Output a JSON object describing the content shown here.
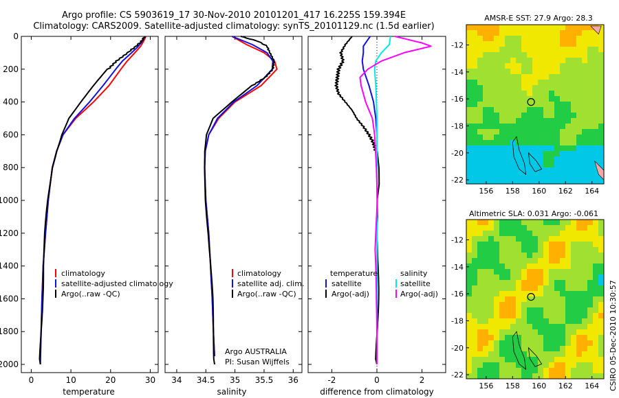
{
  "header": {
    "line1": "Argo profile: CS 5903619_17 30-Nov-2010 20101201_417 16.225S 159.394E",
    "line2": "Climatology: CARS2009. Satellite-adjusted climatology: synTS_20101129.nc (1.5d earlier)"
  },
  "credit": "CSIRO 05-Dec-2010 10:30:57",
  "colors": {
    "red": "#ff0000",
    "blue": "#1010e0",
    "black": "#000000",
    "cyan": "#00e8e8",
    "magenta": "#ff00ff"
  },
  "chart_data": [
    {
      "type": "line",
      "id": "temperature",
      "xlabel": "temperature",
      "ylabel": "",
      "xlim": [
        -2.5,
        32
      ],
      "ylim": [
        2050,
        0
      ],
      "xticks": [
        0,
        10,
        20,
        30
      ],
      "yticks": [
        0,
        200,
        400,
        600,
        800,
        1000,
        1200,
        1400,
        1600,
        1800,
        2000
      ],
      "legend": [
        "climatology",
        "satellite-adjusted climatology",
        "Argo(..raw -QC)"
      ],
      "series": [
        {
          "name": "climatology",
          "color": "red",
          "depth": [
            0,
            30,
            60,
            100,
            150,
            200,
            300,
            400,
            500,
            600,
            700,
            800,
            1000,
            1200,
            1400,
            1600,
            1800,
            1860
          ],
          "values": [
            28.9,
            28.3,
            27.6,
            26.1,
            24.2,
            22.6,
            19.6,
            15.7,
            11.2,
            8.0,
            6.4,
            5.3,
            4.3,
            3.6,
            3.0,
            2.7,
            2.5,
            2.4
          ]
        },
        {
          "name": "satellite-adjusted climatology",
          "color": "blue",
          "depth": [
            0,
            30,
            60,
            100,
            150,
            200,
            300,
            400,
            500,
            600,
            700,
            800,
            1000,
            1200,
            1400,
            1600,
            1800,
            2000
          ],
          "values": [
            28.6,
            28.0,
            27.0,
            25.3,
            23.0,
            21.3,
            18.1,
            14.7,
            10.9,
            8.0,
            6.4,
            5.3,
            4.3,
            3.6,
            3.0,
            2.7,
            2.5,
            2.3
          ]
        },
        {
          "name": "Argo(..raw -QC)",
          "color": "black",
          "depth": [
            0,
            30,
            60,
            100,
            150,
            200,
            300,
            400,
            500,
            600,
            700,
            800,
            1000,
            1200,
            1400,
            1600,
            1800,
            2000
          ],
          "values": [
            28.6,
            27.8,
            26.4,
            24.3,
            21.5,
            19.4,
            15.9,
            12.6,
            9.4,
            7.5,
            6.2,
            5.2,
            4.3,
            3.6,
            3.0,
            2.7,
            2.5,
            2.3
          ]
        }
      ]
    },
    {
      "type": "line",
      "id": "salinity",
      "xlabel": "salinity",
      "ylabel": "",
      "xlim": [
        33.8,
        36.15
      ],
      "ylim": [
        2050,
        0
      ],
      "xticks": [
        34,
        34.5,
        35,
        35.5,
        36
      ],
      "legend": [
        "climatology",
        "satellite adj. clim.",
        "Argo(..raw -QC)"
      ],
      "annotation": [
        "Argo AUSTRALIA",
        "PI: Susan Wijffels"
      ],
      "series": [
        {
          "name": "climatology",
          "color": "red",
          "depth": [
            0,
            50,
            100,
            150,
            200,
            300,
            400,
            500,
            600,
            700,
            800,
            1000,
            1200,
            1400,
            1600,
            1800,
            1950
          ],
          "values": [
            34.95,
            35.2,
            35.5,
            35.68,
            35.72,
            35.45,
            35.0,
            34.72,
            34.55,
            34.49,
            34.48,
            34.5,
            34.55,
            34.58,
            34.61,
            34.63,
            34.65
          ]
        },
        {
          "name": "satellite adj. clim.",
          "color": "blue",
          "depth": [
            0,
            50,
            100,
            150,
            200,
            300,
            400,
            500,
            600,
            700,
            800,
            1000,
            1200,
            1400,
            1600,
            1800,
            1950
          ],
          "values": [
            34.95,
            35.3,
            35.55,
            35.65,
            35.64,
            35.38,
            34.98,
            34.7,
            34.55,
            34.49,
            34.48,
            34.5,
            34.55,
            34.58,
            34.61,
            34.63,
            34.65
          ]
        },
        {
          "name": "Argo(..raw -QC)",
          "color": "black",
          "depth": [
            0,
            30,
            60,
            100,
            150,
            200,
            250,
            300,
            400,
            500,
            600,
            700,
            800,
            1000,
            1200,
            1400,
            1600,
            1800,
            2000
          ],
          "values": [
            35.1,
            35.4,
            35.55,
            35.6,
            35.67,
            35.65,
            35.52,
            35.3,
            34.95,
            34.62,
            34.5,
            34.47,
            34.47,
            34.5,
            34.55,
            34.58,
            34.61,
            34.63,
            34.65
          ]
        }
      ]
    },
    {
      "type": "line",
      "id": "difference",
      "xlabel": "difference from climatology",
      "ylabel": "",
      "xlim": [
        -3.05,
        3.05
      ],
      "ylim": [
        2050,
        0
      ],
      "xticks": [
        -2,
        0,
        2
      ],
      "legend_left": [
        "temperature",
        "satellite",
        "Argo(-adj)"
      ],
      "legend_right": [
        "salinity",
        "satellite",
        "Argo(-adj)"
      ],
      "series": [
        {
          "name": "temperature satellite",
          "color": "blue",
          "depth": [
            0,
            60,
            100,
            150,
            200,
            300,
            400,
            500,
            600,
            800,
            1000,
            1400,
            2000
          ],
          "values": [
            -0.3,
            -0.6,
            -0.6,
            -0.65,
            -0.6,
            -0.35,
            -0.15,
            -0.05,
            0,
            0,
            0,
            0,
            0
          ]
        },
        {
          "name": "temperature Argo(-adj)",
          "color": "black",
          "depth": [
            0,
            50,
            100,
            150,
            200,
            250,
            300,
            350,
            400,
            450,
            500,
            550,
            600,
            650,
            700,
            800,
            900,
            1000,
            1100,
            1200,
            1400,
            1600,
            1800,
            2000
          ],
          "values": [
            -1.1,
            -1.4,
            -1.6,
            -1.5,
            -1.7,
            -1.75,
            -1.8,
            -1.7,
            -1.4,
            -1.1,
            -0.9,
            -0.6,
            -0.35,
            -0.15,
            -0.05,
            0.05,
            0.1,
            0.05,
            0.08,
            0.05,
            0.03,
            0.02,
            0.01,
            0
          ]
        },
        {
          "name": "salinity satellite",
          "color": "cyan",
          "depth": [
            0,
            50,
            100,
            150,
            200,
            300,
            400,
            500,
            600,
            800,
            1000,
            2000
          ],
          "values": [
            0.6,
            0.55,
            0.2,
            -0.05,
            -0.1,
            -0.05,
            -0.02,
            0,
            0,
            0,
            0,
            0
          ]
        },
        {
          "name": "salinity Argo(-adj)",
          "color": "magenta",
          "depth": [
            0,
            40,
            60,
            100,
            150,
            200,
            250,
            300,
            400,
            500,
            600,
            800,
            1000,
            1200,
            1300,
            1400,
            1500,
            1600,
            1800,
            2000
          ],
          "values": [
            0.8,
            2.0,
            2.4,
            1.2,
            0.2,
            -0.4,
            -0.75,
            -0.7,
            -0.5,
            -0.2,
            -0.1,
            -0.02,
            0.02,
            -0.05,
            -0.08,
            -0.05,
            -0.03,
            -0.02,
            0,
            0
          ]
        }
      ]
    },
    {
      "type": "heatmap",
      "id": "sst-map",
      "title": "AMSR-E SST: 27.9 Argo: 28.3",
      "xlim": [
        154.5,
        164.9
      ],
      "ylim": [
        -22.3,
        -10.5
      ],
      "xticks": [
        156,
        158,
        160,
        162,
        164
      ],
      "yticks": [
        -12,
        -14,
        -16,
        -18,
        -20,
        -22
      ],
      "marker": {
        "lon": 159.394,
        "lat": -16.225
      }
    },
    {
      "type": "heatmap",
      "id": "sla-map",
      "title": "Altimetric SLA: 0.031 Argo: -0.061",
      "xlim": [
        154.5,
        164.9
      ],
      "ylim": [
        -22.3,
        -10.5
      ],
      "xticks": [
        156,
        158,
        160,
        162,
        164
      ],
      "yticks": [
        -12,
        -14,
        -16,
        -18,
        -20,
        -22
      ],
      "marker": {
        "lon": 159.394,
        "lat": -16.225
      }
    }
  ]
}
